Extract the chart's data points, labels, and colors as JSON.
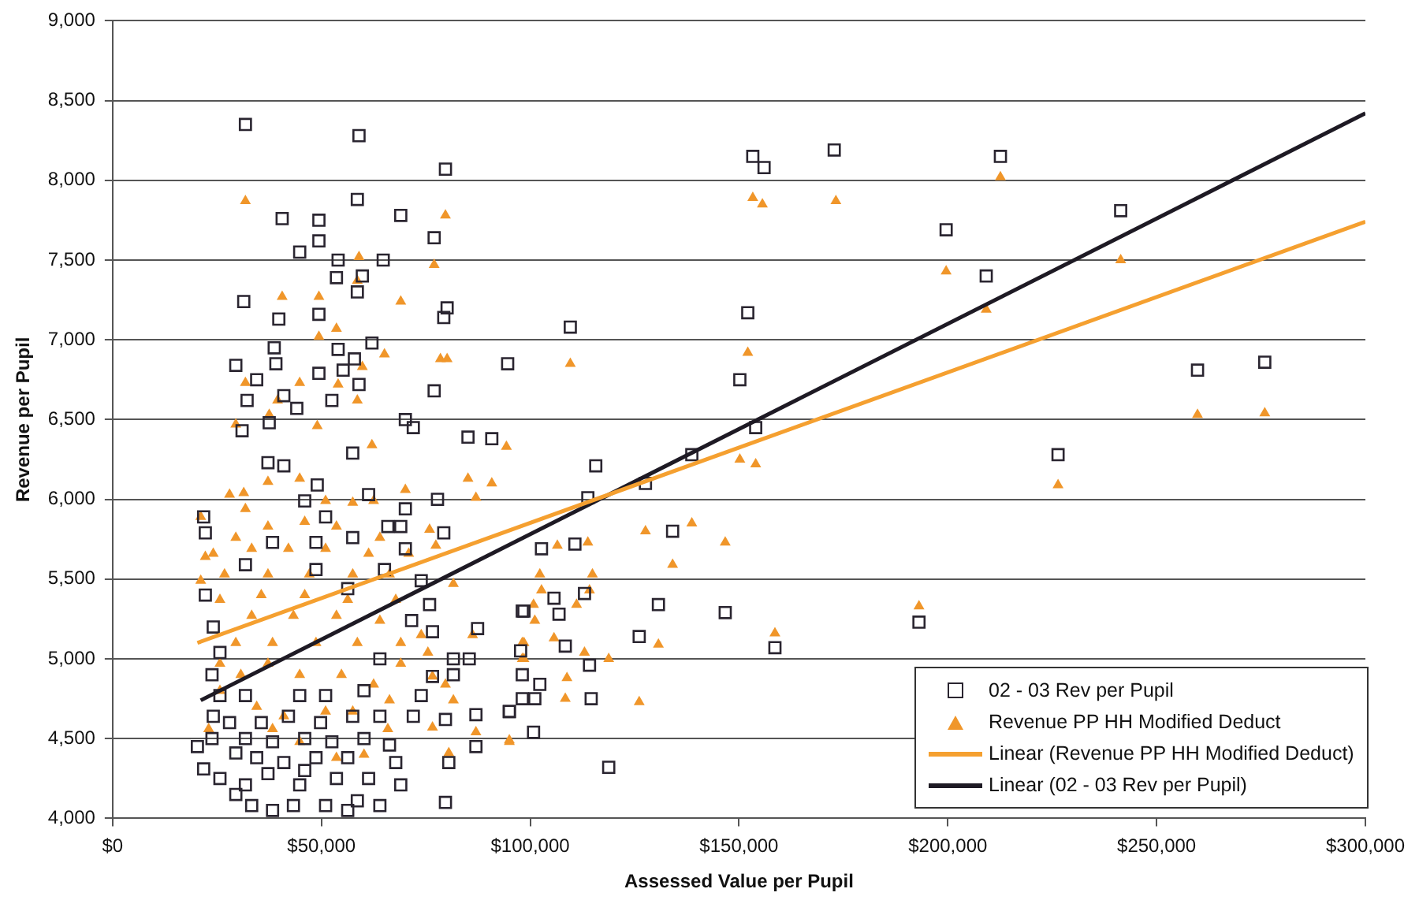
{
  "chart_data": {
    "type": "scatter",
    "xlabel": "Assessed Value per Pupil",
    "ylabel": "Revenue per Pupil",
    "xlim": [
      0,
      300000
    ],
    "ylim": [
      4000,
      9000
    ],
    "xticks": [
      {
        "value": 0,
        "label": "$0"
      },
      {
        "value": 50000,
        "label": "$50,000"
      },
      {
        "value": 100000,
        "label": "$100,000"
      },
      {
        "value": 150000,
        "label": "$150,000"
      },
      {
        "value": 200000,
        "label": "$200,000"
      },
      {
        "value": 250000,
        "label": "$250,000"
      },
      {
        "value": 300000,
        "label": "$300,000"
      }
    ],
    "yticks": [
      {
        "value": 4000,
        "label": "4,000"
      },
      {
        "value": 4500,
        "label": "4,500"
      },
      {
        "value": 5000,
        "label": "5,000"
      },
      {
        "value": 5500,
        "label": "5,500"
      },
      {
        "value": 6000,
        "label": "6,000"
      },
      {
        "value": 6500,
        "label": "6,500"
      },
      {
        "value": 7000,
        "label": "7,000"
      },
      {
        "value": 7500,
        "label": "7,500"
      },
      {
        "value": 8000,
        "label": "8,000"
      },
      {
        "value": 8500,
        "label": "8,500"
      },
      {
        "value": 9000,
        "label": "9,000"
      }
    ],
    "grid": "y",
    "legend": "bottom right",
    "series": [
      {
        "name": "02 - 03 Rev per Pupil",
        "marker": "square",
        "color": "#2a2530",
        "x": [
          153300,
          156000,
          172800,
          199600,
          212600,
          241400,
          209200,
          152100,
          150200,
          154000,
          226400,
          259800,
          275900,
          193100,
          158600,
          146700,
          138700,
          127600,
          115700,
          113800,
          109600,
          94600,
          134100,
          102700,
          110700,
          98100,
          105700,
          106900,
          113000,
          130700,
          108400,
          114200,
          126100,
          98100,
          102300,
          98100,
          95000,
          101100,
          114600,
          100800,
          118800,
          31800,
          59000,
          79700,
          58600,
          40600,
          49400,
          69000,
          77000,
          49400,
          44800,
          54000,
          64800,
          53600,
          59800,
          58600,
          31400,
          80100,
          79300,
          39800,
          49400,
          62100,
          38700,
          29500,
          54000,
          39100,
          49400,
          55200,
          34500,
          57900,
          77000,
          32200,
          41000,
          52500,
          59000,
          70100,
          72000,
          85100,
          90800,
          31000,
          37500,
          44100,
          37200,
          41000,
          57500,
          49000,
          61300,
          70100,
          77800,
          65900,
          69000,
          79300,
          22200,
          21800,
          48700,
          57500,
          73900,
          75900,
          76600,
          87400,
          81600,
          85400,
          98500,
          97700,
          76600,
          81600,
          73900,
          87000,
          95000,
          79700,
          72000,
          66300,
          87000,
          80500,
          79700,
          69000,
          23800,
          20300,
          21800,
          25700,
          29500,
          33300,
          38300,
          43300,
          51000,
          56300,
          58600,
          64000,
          44800,
          53600,
          61300,
          67800,
          34500,
          41000,
          48700,
          56300,
          31800,
          38300,
          46000,
          52500,
          60200,
          28000,
          35600,
          42100,
          49800,
          57500,
          64000,
          29500,
          37200,
          46000,
          31800,
          24100,
          25700,
          31800,
          23800,
          25700,
          24100,
          22200,
          70100,
          65100,
          71600,
          64000,
          60200,
          51000,
          44800,
          56300,
          48700,
          38300,
          31800,
          46000,
          51000
        ],
        "values": [
          8150,
          8080,
          8190,
          7690,
          8150,
          7810,
          7400,
          7170,
          6750,
          6450,
          6280,
          6810,
          6860,
          5230,
          5070,
          5290,
          6280,
          6100,
          6210,
          6010,
          7080,
          6850,
          5800,
          5690,
          5720,
          5300,
          5380,
          5280,
          5410,
          5340,
          5080,
          4960,
          5140,
          4900,
          4840,
          4750,
          4670,
          4750,
          4750,
          4540,
          4320,
          8350,
          8280,
          8070,
          7880,
          7760,
          7750,
          7780,
          7640,
          7620,
          7550,
          7500,
          7500,
          7390,
          7400,
          7300,
          7240,
          7200,
          7140,
          7130,
          7160,
          6980,
          6950,
          6840,
          6940,
          6850,
          6790,
          6810,
          6750,
          6880,
          6680,
          6620,
          6650,
          6620,
          6720,
          6500,
          6450,
          6390,
          6380,
          6430,
          6480,
          6570,
          6230,
          6210,
          6290,
          6090,
          6030,
          5940,
          6000,
          5830,
          5830,
          5790,
          5790,
          5890,
          5730,
          5760,
          5490,
          5340,
          5170,
          5190,
          5000,
          5000,
          5300,
          5050,
          4890,
          4900,
          4770,
          4650,
          4670,
          4620,
          4640,
          4460,
          4450,
          4350,
          4100,
          4210,
          4500,
          4450,
          4310,
          4250,
          4150,
          4080,
          4050,
          4080,
          4080,
          4050,
          4110,
          4080,
          4210,
          4250,
          4250,
          4350,
          4380,
          4350,
          4380,
          4380,
          4500,
          4480,
          4500,
          4480,
          4500,
          4600,
          4600,
          4640,
          4600,
          4640,
          4640,
          4410,
          4280,
          4300,
          4210,
          4640,
          4770,
          4770,
          4900,
          5040,
          5200,
          5400,
          5690,
          5560,
          5240,
          5000,
          4800,
          4770,
          4770,
          5440,
          5560,
          5730,
          5590,
          5990,
          5890
        ]
      },
      {
        "name": "Revenue PP HH Modified Deduct",
        "marker": "triangle",
        "color": "#f0962a",
        "x": [
          153300,
          155600,
          173200,
          199600,
          212600,
          241400,
          209200,
          152100,
          150200,
          154000,
          226400,
          259800,
          275900,
          109600,
          94300,
          127600,
          138700,
          146700,
          106500,
          113800,
          134100,
          102300,
          114900,
          102700,
          114200,
          100800,
          111100,
          101100,
          193100,
          158600,
          98100,
          105700,
          130700,
          113000,
          98100,
          118800,
          108800,
          108400,
          126100,
          95000,
          31800,
          79700,
          59000,
          77000,
          58600,
          40600,
          49400,
          69000,
          53600,
          49400,
          65100,
          78500,
          80100,
          59800,
          31800,
          44800,
          54000,
          39500,
          58600,
          37500,
          29500,
          49000,
          62100,
          21100,
          22200,
          21100,
          28000,
          31400,
          37200,
          31800,
          44800,
          51000,
          57500,
          62500,
          70100,
          85100,
          90800,
          87000,
          75900,
          77400,
          70900,
          81600,
          86200,
          98500,
          98500,
          73900,
          69000,
          75500,
          69000,
          76600,
          79700,
          81600,
          87000,
          95000,
          80500,
          76600,
          65900,
          60200,
          53600,
          44800,
          38300,
          23000,
          30700,
          25700,
          34500,
          41000,
          51000,
          57500,
          66300,
          62500,
          54800,
          44800,
          37200,
          25700,
          29500,
          38300,
          48700,
          58600,
          64000,
          53600,
          43300,
          33300,
          25700,
          35600,
          46000,
          56300,
          67800,
          66300,
          57500,
          47100,
          37200,
          26800,
          24100,
          33300,
          42100,
          51000,
          61300,
          37200,
          46000,
          53600,
          29500,
          64000
        ],
        "values": [
          7890,
          7850,
          7870,
          7430,
          8020,
          7500,
          7190,
          6920,
          6250,
          6220,
          6090,
          6530,
          6540,
          6850,
          6330,
          5800,
          5850,
          5730,
          5710,
          5730,
          5590,
          5530,
          5530,
          5430,
          5430,
          5340,
          5340,
          5240,
          5330,
          5160,
          5100,
          5130,
          5090,
          5040,
          5000,
          5000,
          4880,
          4750,
          4730,
          4490,
          7870,
          7780,
          7520,
          7470,
          7370,
          7270,
          7270,
          7240,
          7070,
          7020,
          6910,
          6880,
          6880,
          6830,
          6730,
          6730,
          6720,
          6620,
          6620,
          6530,
          6470,
          6460,
          6340,
          5890,
          5640,
          5490,
          6030,
          6040,
          6110,
          5940,
          6130,
          5990,
          5980,
          5990,
          6060,
          6130,
          6100,
          6010,
          5810,
          5710,
          5660,
          5470,
          5150,
          5100,
          5000,
          5150,
          5100,
          5040,
          4970,
          4890,
          4840,
          4740,
          4540,
          4480,
          4410,
          4570,
          4560,
          4400,
          4380,
          4480,
          4560,
          4560,
          4900,
          4800,
          4700,
          4640,
          4670,
          4670,
          4740,
          4840,
          4900,
          4900,
          4970,
          4970,
          5100,
          5100,
          5100,
          5100,
          5240,
          5270,
          5270,
          5270,
          5370,
          5400,
          5400,
          5370,
          5370,
          5530,
          5530,
          5530,
          5530,
          5530,
          5660,
          5690,
          5690,
          5690,
          5660,
          5830,
          5860,
          5830,
          5760,
          5760
        ]
      },
      {
        "name": "Linear (Revenue PP HH Modified Deduct)",
        "type": "line",
        "marker": "none",
        "color": "#f5a030",
        "x": [
          20300,
          300000
        ],
        "values": [
          5100,
          7740
        ]
      },
      {
        "name": "Linear (02 - 03 Rev per Pupil)",
        "type": "line",
        "marker": "none",
        "color": "#1e1a24",
        "x": [
          21100,
          300000
        ],
        "values": [
          4740,
          8420
        ]
      }
    ]
  }
}
